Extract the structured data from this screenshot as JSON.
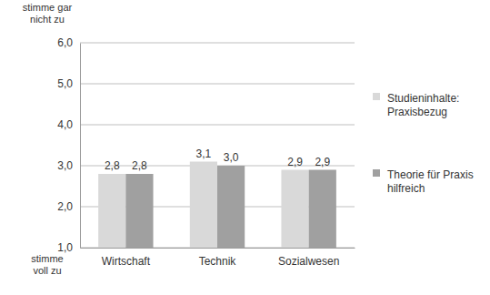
{
  "chart_data": {
    "type": "bar",
    "categories": [
      "Wirtschaft",
      "Technik",
      "Sozialwesen"
    ],
    "series": [
      {
        "name": "Studieninhalte: Praxisbezug",
        "color": "#d9d9d9",
        "values": [
          2.8,
          3.1,
          2.9
        ],
        "value_labels": [
          "2,8",
          "3,1",
          "2,9"
        ]
      },
      {
        "name": "Theorie für Praxis hilfreich",
        "color": "#a0a0a0",
        "values": [
          2.8,
          3.0,
          2.9
        ],
        "value_labels": [
          "2,8",
          "3,0",
          "2,9"
        ]
      }
    ],
    "ylim": [
      1,
      6
    ],
    "yticks": [
      {
        "value": 1,
        "label": "1,0"
      },
      {
        "value": 2,
        "label": "2,0"
      },
      {
        "value": 3,
        "label": "3,0"
      },
      {
        "value": 4,
        "label": "4,0"
      },
      {
        "value": 5,
        "label": "5,0"
      },
      {
        "value": 6,
        "label": "6,0"
      }
    ],
    "annotations": [
      "stimme gar nicht zu",
      "stimme voll zu"
    ],
    "grid": true,
    "legend": "right",
    "data_labels": true
  }
}
